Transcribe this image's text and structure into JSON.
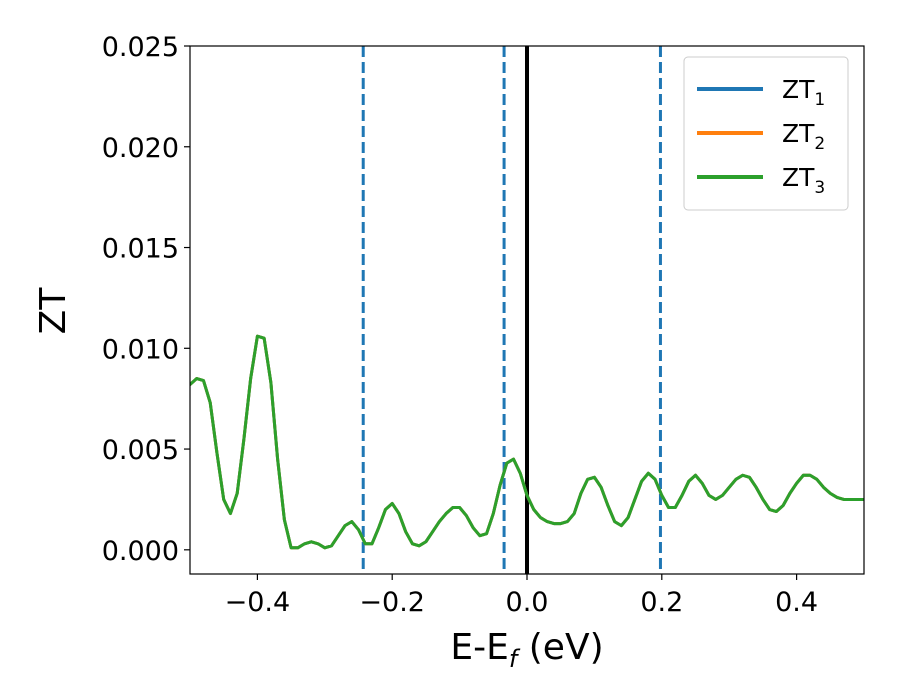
{
  "chart_data": {
    "type": "line",
    "xlabel": "E-E_f (eV)",
    "ylabel": "ZT",
    "xlim": [
      -0.5,
      0.5
    ],
    "ylim": [
      -0.0012,
      0.025
    ],
    "xticks": [
      -0.4,
      -0.2,
      0.0,
      0.2,
      0.4
    ],
    "xtick_labels": [
      "−0.4",
      "−0.2",
      "0.0",
      "0.2",
      "0.4"
    ],
    "yticks": [
      0.0,
      0.005,
      0.01,
      0.015,
      0.02,
      0.025
    ],
    "ytick_labels": [
      "0.000",
      "0.005",
      "0.010",
      "0.015",
      "0.020",
      "0.025"
    ],
    "grid": false,
    "legend_position": "top-right",
    "vertical_lines": [
      {
        "x": -0.243,
        "style": "dashed",
        "color": "#1f77b4"
      },
      {
        "x": -0.034,
        "style": "dashed",
        "color": "#1f77b4"
      },
      {
        "x": 0.0,
        "style": "solid",
        "color": "#000000"
      },
      {
        "x": 0.198,
        "style": "dashed",
        "color": "#1f77b4"
      }
    ],
    "series": [
      {
        "name": "ZT1",
        "label_base": "ZT",
        "label_sub": "1",
        "color": "#1f77b4",
        "x": [
          -0.5,
          -0.49,
          -0.48,
          -0.47,
          -0.46,
          -0.45,
          -0.44,
          -0.43,
          -0.42,
          -0.41,
          -0.4,
          -0.39,
          -0.38,
          -0.37,
          -0.36,
          -0.35,
          -0.34,
          -0.33,
          -0.32,
          -0.31,
          -0.3,
          -0.29,
          -0.28,
          -0.27,
          -0.26,
          -0.25,
          -0.24,
          -0.23,
          -0.22,
          -0.21,
          -0.2,
          -0.19,
          -0.18,
          -0.17,
          -0.16,
          -0.15,
          -0.14,
          -0.13,
          -0.12,
          -0.11,
          -0.1,
          -0.09,
          -0.08,
          -0.07,
          -0.06,
          -0.05,
          -0.04,
          -0.03,
          -0.02,
          -0.01,
          0.0,
          0.01,
          0.02,
          0.03,
          0.04,
          0.05,
          0.06,
          0.07,
          0.08,
          0.09,
          0.1,
          0.11,
          0.12,
          0.13,
          0.14,
          0.15,
          0.16,
          0.17,
          0.18,
          0.19,
          0.2,
          0.21,
          0.22,
          0.23,
          0.24,
          0.25,
          0.26,
          0.27,
          0.28,
          0.29,
          0.3,
          0.31,
          0.32,
          0.33,
          0.34,
          0.35,
          0.36,
          0.37,
          0.38,
          0.39,
          0.4,
          0.41,
          0.42,
          0.43,
          0.44,
          0.45,
          0.46,
          0.47,
          0.48,
          0.49,
          0.5
        ],
        "y": [
          0.0082,
          0.0085,
          0.0084,
          0.0073,
          0.0048,
          0.0025,
          0.0018,
          0.0028,
          0.0055,
          0.0085,
          0.0106,
          0.0105,
          0.0083,
          0.0045,
          0.0015,
          0.0001,
          0.0001,
          0.0003,
          0.0004,
          0.0003,
          0.0001,
          0.0002,
          0.0007,
          0.0012,
          0.0014,
          0.001,
          0.0003,
          0.0003,
          0.0011,
          0.002,
          0.0023,
          0.0018,
          0.0009,
          0.0003,
          0.0002,
          0.0004,
          0.0009,
          0.0014,
          0.0018,
          0.0021,
          0.0021,
          0.0017,
          0.0011,
          0.0007,
          0.0008,
          0.0018,
          0.0032,
          0.0043,
          0.0045,
          0.0038,
          0.0027,
          0.002,
          0.0016,
          0.0014,
          0.0013,
          0.0013,
          0.0014,
          0.0018,
          0.0028,
          0.0035,
          0.0036,
          0.0031,
          0.0022,
          0.0014,
          0.0012,
          0.0016,
          0.0025,
          0.0034,
          0.0038,
          0.0035,
          0.0027,
          0.0021,
          0.0021,
          0.0027,
          0.0034,
          0.0037,
          0.0033,
          0.0027,
          0.0025,
          0.0027,
          0.0031,
          0.0035,
          0.0037,
          0.0036,
          0.0031,
          0.0025,
          0.002,
          0.0019,
          0.0022,
          0.0028,
          0.0033,
          0.0037,
          0.0037,
          0.0035,
          0.0031,
          0.0028,
          0.0026,
          0.0025,
          0.0025,
          0.0025,
          0.0025
        ]
      },
      {
        "name": "ZT2",
        "label_base": "ZT",
        "label_sub": "2",
        "color": "#ff7f0e",
        "x": [
          -0.5,
          -0.49,
          -0.48,
          -0.47,
          -0.46,
          -0.45,
          -0.44,
          -0.43,
          -0.42,
          -0.41,
          -0.4,
          -0.39,
          -0.38,
          -0.37,
          -0.36,
          -0.35,
          -0.34,
          -0.33,
          -0.32,
          -0.31,
          -0.3,
          -0.29,
          -0.28,
          -0.27,
          -0.26,
          -0.25,
          -0.24,
          -0.23,
          -0.22,
          -0.21,
          -0.2,
          -0.19,
          -0.18,
          -0.17,
          -0.16,
          -0.15,
          -0.14,
          -0.13,
          -0.12,
          -0.11,
          -0.1,
          -0.09,
          -0.08,
          -0.07,
          -0.06,
          -0.05,
          -0.04,
          -0.03,
          -0.02,
          -0.01,
          0.0,
          0.01,
          0.02,
          0.03,
          0.04,
          0.05,
          0.06,
          0.07,
          0.08,
          0.09,
          0.1,
          0.11,
          0.12,
          0.13,
          0.14,
          0.15,
          0.16,
          0.17,
          0.18,
          0.19,
          0.2,
          0.21,
          0.22,
          0.23,
          0.24,
          0.25,
          0.26,
          0.27,
          0.28,
          0.29,
          0.3,
          0.31,
          0.32,
          0.33,
          0.34,
          0.35,
          0.36,
          0.37,
          0.38,
          0.39,
          0.4,
          0.41,
          0.42,
          0.43,
          0.44,
          0.45,
          0.46,
          0.47,
          0.48,
          0.49,
          0.5
        ],
        "y": [
          0.0082,
          0.0085,
          0.0084,
          0.0073,
          0.0048,
          0.0025,
          0.0018,
          0.0028,
          0.0055,
          0.0085,
          0.0106,
          0.0105,
          0.0083,
          0.0045,
          0.0015,
          0.0001,
          0.0001,
          0.0003,
          0.0004,
          0.0003,
          0.0001,
          0.0002,
          0.0007,
          0.0012,
          0.0014,
          0.001,
          0.0003,
          0.0003,
          0.0011,
          0.002,
          0.0023,
          0.0018,
          0.0009,
          0.0003,
          0.0002,
          0.0004,
          0.0009,
          0.0014,
          0.0018,
          0.0021,
          0.0021,
          0.0017,
          0.0011,
          0.0007,
          0.0008,
          0.0018,
          0.0032,
          0.0043,
          0.0045,
          0.0038,
          0.0027,
          0.002,
          0.0016,
          0.0014,
          0.0013,
          0.0013,
          0.0014,
          0.0018,
          0.0028,
          0.0035,
          0.0036,
          0.0031,
          0.0022,
          0.0014,
          0.0012,
          0.0016,
          0.0025,
          0.0034,
          0.0038,
          0.0035,
          0.0027,
          0.0021,
          0.0021,
          0.0027,
          0.0034,
          0.0037,
          0.0033,
          0.0027,
          0.0025,
          0.0027,
          0.0031,
          0.0035,
          0.0037,
          0.0036,
          0.0031,
          0.0025,
          0.002,
          0.0019,
          0.0022,
          0.0028,
          0.0033,
          0.0037,
          0.0037,
          0.0035,
          0.0031,
          0.0028,
          0.0026,
          0.0025,
          0.0025,
          0.0025,
          0.0025
        ]
      },
      {
        "name": "ZT3",
        "label_base": "ZT",
        "label_sub": "3",
        "color": "#2ca02c",
        "x": [
          -0.5,
          -0.49,
          -0.48,
          -0.47,
          -0.46,
          -0.45,
          -0.44,
          -0.43,
          -0.42,
          -0.41,
          -0.4,
          -0.39,
          -0.38,
          -0.37,
          -0.36,
          -0.35,
          -0.34,
          -0.33,
          -0.32,
          -0.31,
          -0.3,
          -0.29,
          -0.28,
          -0.27,
          -0.26,
          -0.25,
          -0.24,
          -0.23,
          -0.22,
          -0.21,
          -0.2,
          -0.19,
          -0.18,
          -0.17,
          -0.16,
          -0.15,
          -0.14,
          -0.13,
          -0.12,
          -0.11,
          -0.1,
          -0.09,
          -0.08,
          -0.07,
          -0.06,
          -0.05,
          -0.04,
          -0.03,
          -0.02,
          -0.01,
          0.0,
          0.01,
          0.02,
          0.03,
          0.04,
          0.05,
          0.06,
          0.07,
          0.08,
          0.09,
          0.1,
          0.11,
          0.12,
          0.13,
          0.14,
          0.15,
          0.16,
          0.17,
          0.18,
          0.19,
          0.2,
          0.21,
          0.22,
          0.23,
          0.24,
          0.25,
          0.26,
          0.27,
          0.28,
          0.29,
          0.3,
          0.31,
          0.32,
          0.33,
          0.34,
          0.35,
          0.36,
          0.37,
          0.38,
          0.39,
          0.4,
          0.41,
          0.42,
          0.43,
          0.44,
          0.45,
          0.46,
          0.47,
          0.48,
          0.49,
          0.5
        ],
        "y": [
          0.0082,
          0.0085,
          0.0084,
          0.0073,
          0.0048,
          0.0025,
          0.0018,
          0.0028,
          0.0055,
          0.0085,
          0.0106,
          0.0105,
          0.0083,
          0.0045,
          0.0015,
          0.0001,
          0.0001,
          0.0003,
          0.0004,
          0.0003,
          0.0001,
          0.0002,
          0.0007,
          0.0012,
          0.0014,
          0.001,
          0.0003,
          0.0003,
          0.0011,
          0.002,
          0.0023,
          0.0018,
          0.0009,
          0.0003,
          0.0002,
          0.0004,
          0.0009,
          0.0014,
          0.0018,
          0.0021,
          0.0021,
          0.0017,
          0.0011,
          0.0007,
          0.0008,
          0.0018,
          0.0032,
          0.0043,
          0.0045,
          0.0038,
          0.0027,
          0.002,
          0.0016,
          0.0014,
          0.0013,
          0.0013,
          0.0014,
          0.0018,
          0.0028,
          0.0035,
          0.0036,
          0.0031,
          0.0022,
          0.0014,
          0.0012,
          0.0016,
          0.0025,
          0.0034,
          0.0038,
          0.0035,
          0.0027,
          0.0021,
          0.0021,
          0.0027,
          0.0034,
          0.0037,
          0.0033,
          0.0027,
          0.0025,
          0.0027,
          0.0031,
          0.0035,
          0.0037,
          0.0036,
          0.0031,
          0.0025,
          0.002,
          0.0019,
          0.0022,
          0.0028,
          0.0033,
          0.0037,
          0.0037,
          0.0035,
          0.0031,
          0.0028,
          0.0026,
          0.0025,
          0.0025,
          0.0025,
          0.0025
        ]
      }
    ]
  }
}
